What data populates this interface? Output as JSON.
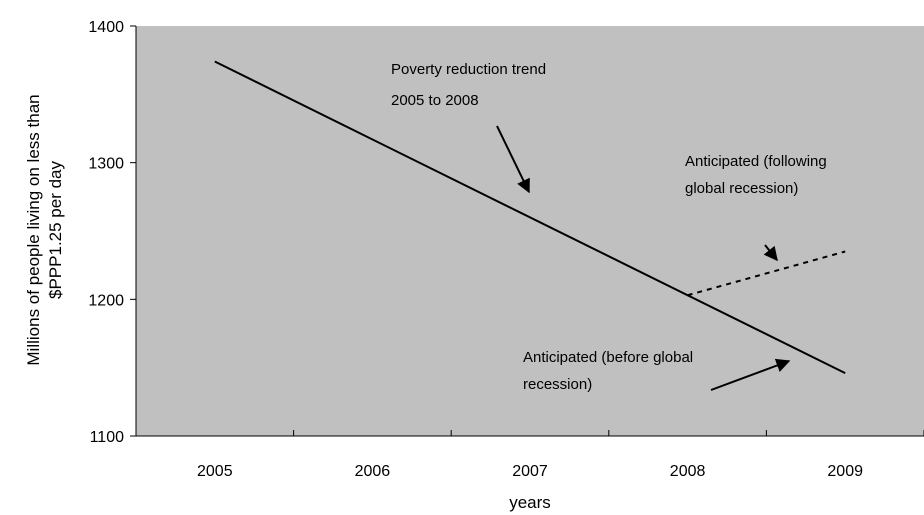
{
  "chart_data": {
    "type": "line",
    "title": "",
    "xlabel": "years",
    "ylabel_lines": [
      "Millions of people living on less than",
      "$PPP1.25 per day"
    ],
    "categories": [
      "2005",
      "2006",
      "2007",
      "2008",
      "2009"
    ],
    "ylim": [
      1100,
      1400
    ],
    "yticks": [
      "1100",
      "1200",
      "1300",
      "1400"
    ],
    "grid": false,
    "legend": "none",
    "plot_background": "#c0c0c0",
    "series": [
      {
        "id": "trend",
        "style": "solid",
        "color": "#000000",
        "points": [
          {
            "x": 2005,
            "y": 1374
          },
          {
            "x": 2009,
            "y": 1146
          }
        ]
      },
      {
        "id": "recession",
        "style": "dotted",
        "color": "#000000",
        "points": [
          {
            "x": 2008,
            "y": 1203
          },
          {
            "x": 2009,
            "y": 1235
          }
        ]
      }
    ],
    "annotations": [
      {
        "id": "annotation-trend",
        "lines": [
          "Poverty reduction trend",
          "2005 to 2008"
        ]
      },
      {
        "id": "annotation-following",
        "lines": [
          "Anticipated (following",
          "global recession)"
        ]
      },
      {
        "id": "annotation-before",
        "lines": [
          "Anticipated (before global",
          "recession)"
        ]
      }
    ]
  }
}
